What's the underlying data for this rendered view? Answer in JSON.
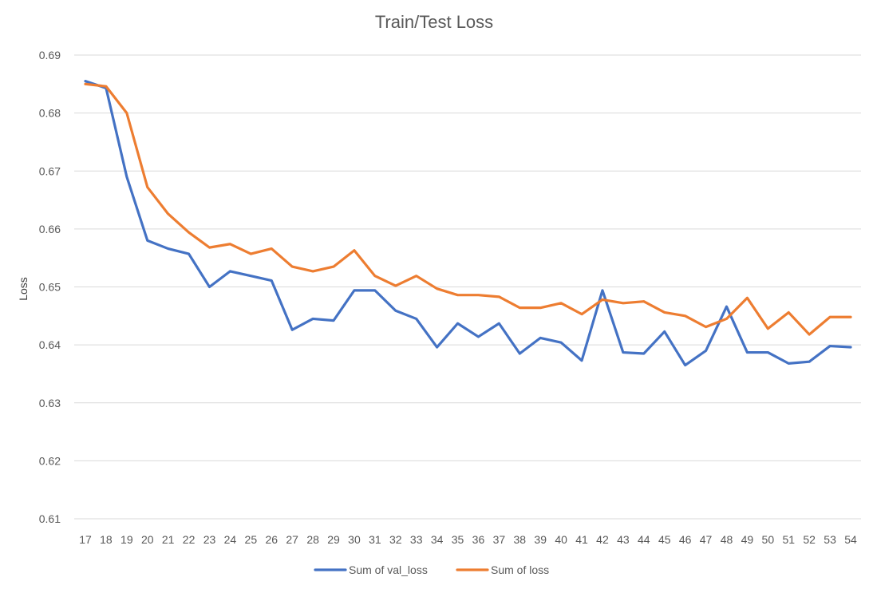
{
  "chart_data": {
    "type": "line",
    "title": "Train/Test Loss",
    "xlabel": "",
    "ylabel": "Loss",
    "categories": [
      "17",
      "18",
      "19",
      "20",
      "21",
      "22",
      "23",
      "24",
      "25",
      "26",
      "27",
      "28",
      "29",
      "30",
      "31",
      "32",
      "33",
      "34",
      "35",
      "36",
      "37",
      "38",
      "39",
      "40",
      "41",
      "42",
      "43",
      "44",
      "45",
      "46",
      "47",
      "48",
      "49",
      "50",
      "51",
      "52",
      "53",
      "54"
    ],
    "ylim": [
      0.61,
      0.69
    ],
    "yticks": [
      "0.61",
      "0.62",
      "0.63",
      "0.64",
      "0.65",
      "0.66",
      "0.67",
      "0.68",
      "0.69"
    ],
    "grid": true,
    "legend_position": "bottom",
    "series": [
      {
        "name": "Sum of val_loss",
        "color": "#4472C4",
        "values": [
          0.6855,
          0.6843,
          0.669,
          0.658,
          0.6566,
          0.6557,
          0.65,
          0.6527,
          0.6519,
          0.6511,
          0.6426,
          0.6445,
          0.6442,
          0.6494,
          0.6494,
          0.6459,
          0.6445,
          0.6396,
          0.6437,
          0.6414,
          0.6437,
          0.6385,
          0.6412,
          0.6404,
          0.6373,
          0.6494,
          0.6387,
          0.6385,
          0.6423,
          0.6365,
          0.639,
          0.6466,
          0.6387,
          0.6387,
          0.6368,
          0.6371,
          0.6398,
          0.6396
        ]
      },
      {
        "name": "Sum of loss",
        "color": "#ED7D31",
        "values": [
          0.685,
          0.6846,
          0.68,
          0.6672,
          0.6626,
          0.6594,
          0.6568,
          0.6574,
          0.6557,
          0.6566,
          0.6535,
          0.6527,
          0.6535,
          0.6563,
          0.6519,
          0.6502,
          0.6519,
          0.6497,
          0.6486,
          0.6486,
          0.6483,
          0.6464,
          0.6464,
          0.6472,
          0.6453,
          0.6478,
          0.6472,
          0.6475,
          0.6456,
          0.645,
          0.6431,
          0.6445,
          0.6481,
          0.6428,
          0.6456,
          0.6418,
          0.6448,
          0.6448
        ]
      }
    ]
  }
}
